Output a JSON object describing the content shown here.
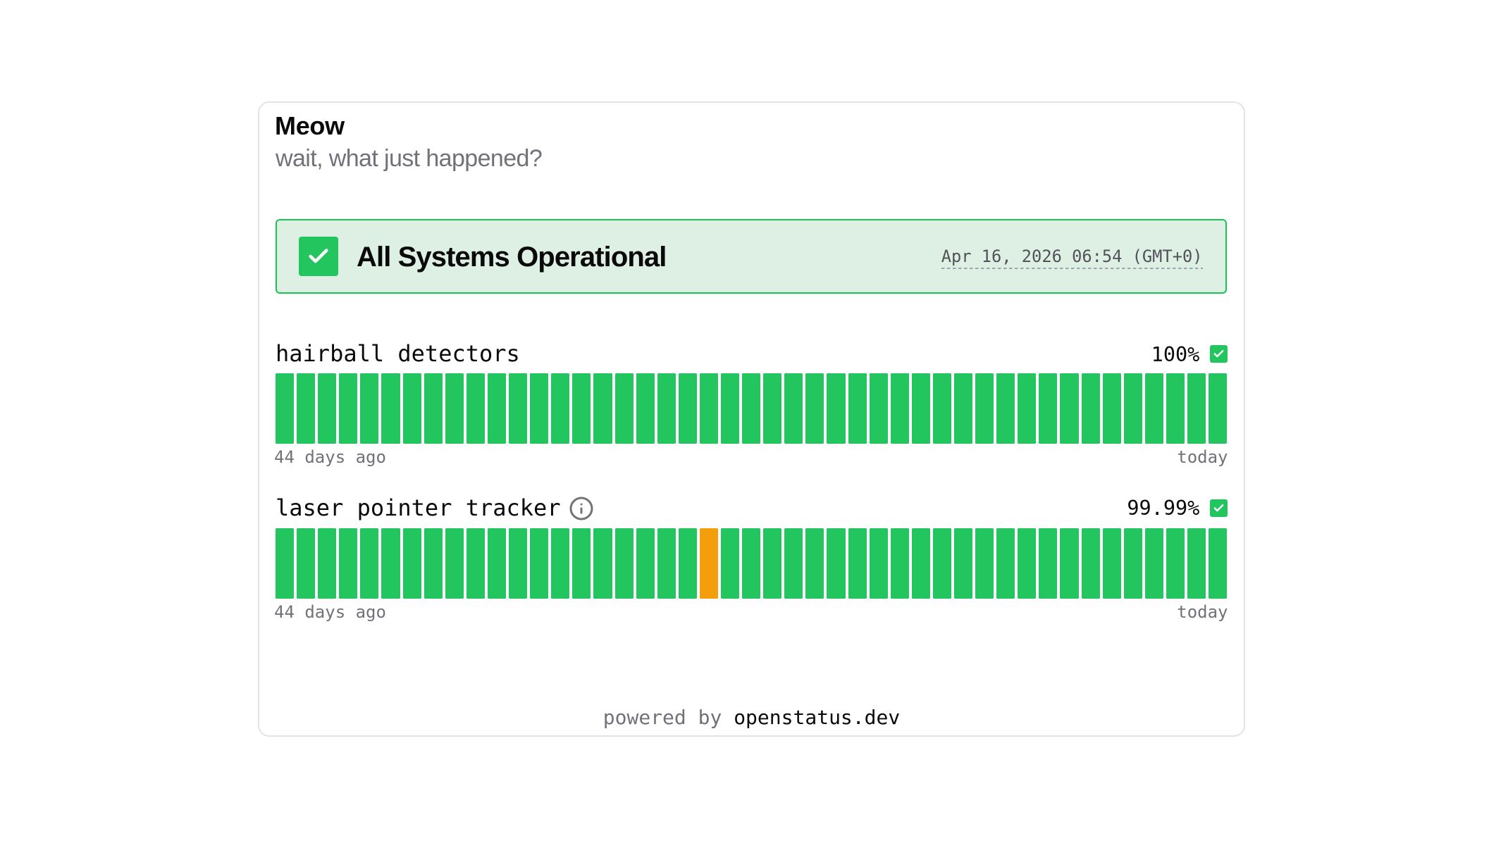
{
  "page": {
    "title": "Meow",
    "subtitle": "wait, what just happened?"
  },
  "status_banner": {
    "label": "All Systems Operational",
    "timestamp": "Apr 16, 2026 06:54 (GMT+0)",
    "state_icon": "check-icon"
  },
  "monitors": [
    {
      "name": "hairball detectors",
      "uptime": "100%",
      "state_icon": "check-icon",
      "range_start": "44 days ago",
      "range_end": "today",
      "bars": [
        "up",
        "up",
        "up",
        "up",
        "up",
        "up",
        "up",
        "up",
        "up",
        "up",
        "up",
        "up",
        "up",
        "up",
        "up",
        "up",
        "up",
        "up",
        "up",
        "up",
        "up",
        "up",
        "up",
        "up",
        "up",
        "up",
        "up",
        "up",
        "up",
        "up",
        "up",
        "up",
        "up",
        "up",
        "up",
        "up",
        "up",
        "up",
        "up",
        "up",
        "up",
        "up",
        "up",
        "up",
        "up"
      ]
    },
    {
      "name": "laser pointer tracker",
      "uptime": "99.99%",
      "state_icon": "check-icon",
      "has_info_icon": true,
      "range_start": "44 days ago",
      "range_end": "today",
      "bars": [
        "up",
        "up",
        "up",
        "up",
        "up",
        "up",
        "up",
        "up",
        "up",
        "up",
        "up",
        "up",
        "up",
        "up",
        "up",
        "up",
        "up",
        "up",
        "up",
        "up",
        "degraded",
        "up",
        "up",
        "up",
        "up",
        "up",
        "up",
        "up",
        "up",
        "up",
        "up",
        "up",
        "up",
        "up",
        "up",
        "up",
        "up",
        "up",
        "up",
        "up",
        "up",
        "up",
        "up",
        "up",
        "up"
      ]
    }
  ],
  "footer": {
    "powered_by": "powered by ",
    "brand": "openstatus.dev"
  },
  "colors": {
    "green": "#22c55e",
    "orange": "#f59e0b",
    "banner_bg": "#ddf0e3",
    "banner_border": "#17c653",
    "card_border": "#e4e4e7",
    "ink": "#0a0a0a",
    "gray": "#71717a",
    "gray_dark": "#52525b",
    "dash": "#9ca3af",
    "icon_gray": "#737373",
    "check_white": "#ffffff"
  }
}
